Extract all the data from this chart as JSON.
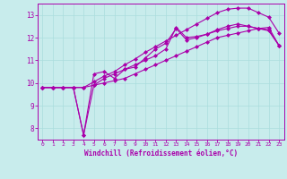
{
  "title": "",
  "xlabel": "Windchill (Refroidissement éolien,°C)",
  "ylabel": "",
  "bg_color": "#c8ecec",
  "line_color": "#aa00aa",
  "grid_color": "#aadddd",
  "xlim": [
    -0.5,
    23.5
  ],
  "ylim": [
    7.5,
    13.5
  ],
  "xticks": [
    0,
    1,
    2,
    3,
    4,
    5,
    6,
    7,
    8,
    9,
    10,
    11,
    12,
    13,
    14,
    15,
    16,
    17,
    18,
    19,
    20,
    21,
    22,
    23
  ],
  "yticks": [
    8,
    9,
    10,
    11,
    12,
    13
  ],
  "line1": [
    9.8,
    9.8,
    9.8,
    9.8,
    7.7,
    10.4,
    10.5,
    10.2,
    10.6,
    10.7,
    11.1,
    11.5,
    11.75,
    12.4,
    11.9,
    12.0,
    12.15,
    12.35,
    12.5,
    12.6,
    12.5,
    12.4,
    12.35,
    11.65
  ],
  "line2": [
    9.8,
    9.8,
    9.8,
    9.8,
    9.8,
    10.05,
    10.3,
    10.5,
    10.8,
    11.05,
    11.35,
    11.6,
    11.85,
    12.1,
    12.35,
    12.6,
    12.85,
    13.1,
    13.25,
    13.3,
    13.3,
    13.1,
    12.9,
    12.2
  ],
  "line3": [
    9.8,
    9.8,
    9.8,
    9.8,
    9.8,
    9.9,
    10.0,
    10.1,
    10.2,
    10.4,
    10.6,
    10.8,
    11.0,
    11.2,
    11.4,
    11.6,
    11.8,
    12.0,
    12.1,
    12.2,
    12.3,
    12.4,
    12.45,
    11.65
  ],
  "line4": [
    9.8,
    9.8,
    9.8,
    9.8,
    7.7,
    9.9,
    10.2,
    10.4,
    10.6,
    10.8,
    11.0,
    11.2,
    11.5,
    12.45,
    12.0,
    12.05,
    12.15,
    12.3,
    12.4,
    12.5,
    12.5,
    12.4,
    12.3,
    11.65
  ],
  "marker": "D",
  "markersize": 2,
  "linewidth": 0.8
}
